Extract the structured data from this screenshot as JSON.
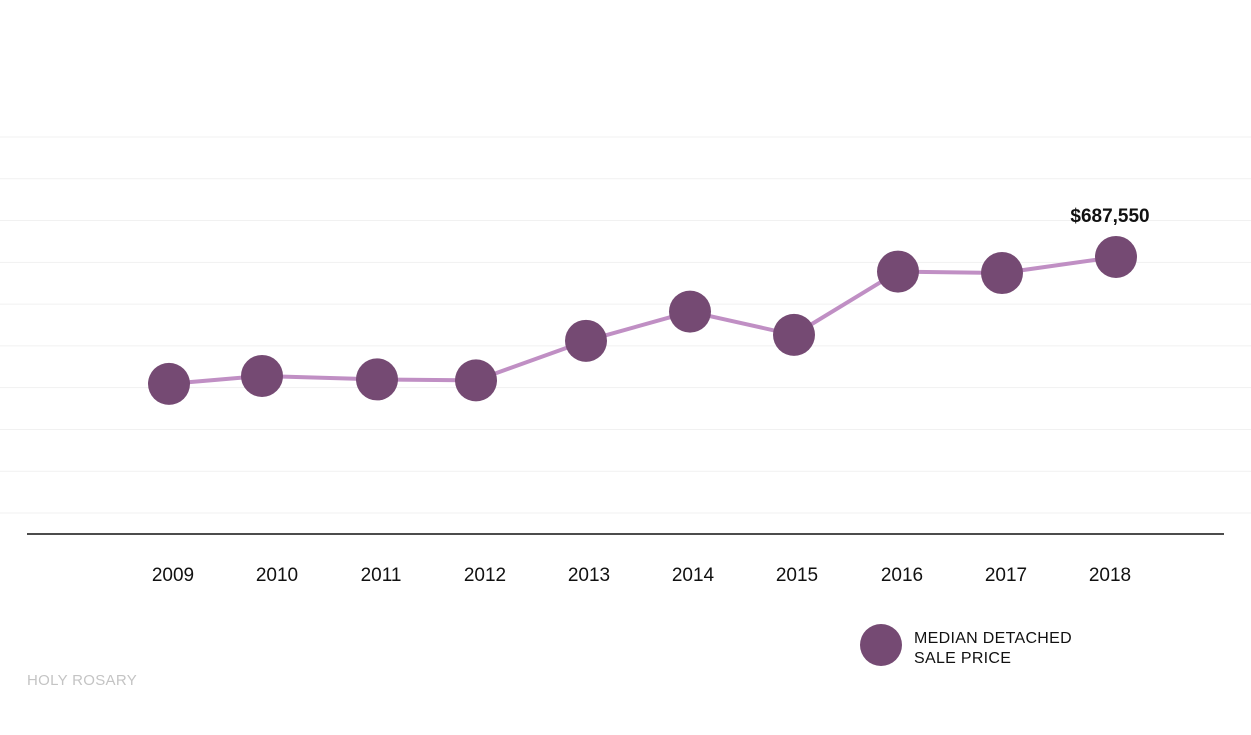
{
  "chart_data": {
    "type": "line",
    "title": "",
    "xlabel": "",
    "ylabel": "",
    "categories": [
      "2009",
      "2010",
      "2011",
      "2012",
      "2013",
      "2014",
      "2015",
      "2016",
      "2017",
      "2018"
    ],
    "series": [
      {
        "name": "MEDIAN DETACHED SALE PRICE",
        "values": [
          431000,
          447000,
          440000,
          438000,
          518000,
          577000,
          530000,
          658000,
          655000,
          687550
        ]
      }
    ],
    "ylim": [
      170000,
      930000
    ],
    "grid": true,
    "legend_position": "bottom-right",
    "data_labels": [
      {
        "category": "2018",
        "text": "$687,550"
      }
    ],
    "colors": {
      "line": "#c08fc4",
      "marker": "#754a73",
      "gridline": "#f1f1f1",
      "axis": "#111111"
    }
  },
  "legend": {
    "line1": "MEDIAN DETACHED",
    "line2": "SALE PRICE"
  },
  "watermark": "HOLY ROSARY"
}
